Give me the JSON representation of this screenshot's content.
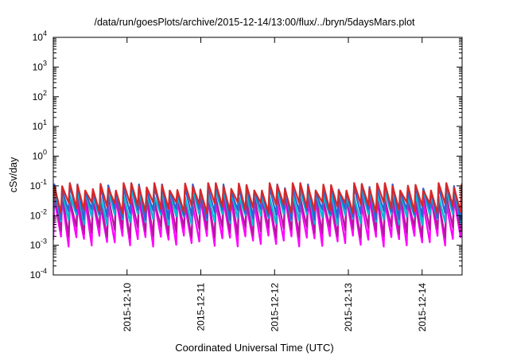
{
  "chart_data": {
    "type": "line",
    "title": "/data/run/goesPlots/archive/2015-12-14/13:00/flux/../bryn/5daysMars.plot",
    "xlabel": "Coordinated Universal Time (UTC)",
    "ylabel": "cSv/day",
    "y_scale": "log",
    "ylim": [
      0.0001,
      10000
    ],
    "y_ticks": [
      {
        "base": "10",
        "exp": "-4"
      },
      {
        "base": "10",
        "exp": "-3"
      },
      {
        "base": "10",
        "exp": "-2"
      },
      {
        "base": "10",
        "exp": "-1"
      },
      {
        "base": "10",
        "exp": "0"
      },
      {
        "base": "10",
        "exp": "1"
      },
      {
        "base": "10",
        "exp": "2"
      },
      {
        "base": "10",
        "exp": "3"
      },
      {
        "base": "10",
        "exp": "4"
      }
    ],
    "x_range": [
      "2015-12-09 00:00",
      "2015-12-14 13:00"
    ],
    "x_ticks": [
      "2015-12-10",
      "2015-12-11",
      "2015-12-12",
      "2015-12-13",
      "2015-12-14"
    ],
    "grid": false,
    "legend": "none",
    "pattern": {
      "period_hours": 2.5,
      "description": "sawtooth: sharp rise then decay each period"
    },
    "series": [
      {
        "color": "#ff00ff",
        "peak": 0.03,
        "trough": 0.0015
      },
      {
        "color": "#b5179e",
        "peak": 0.045,
        "trough": 0.003
      },
      {
        "color": "#00bcd4",
        "peak": 0.06,
        "trough": 0.008
      },
      {
        "color": "#2f63d6",
        "peak": 0.09,
        "trough": 0.012
      },
      {
        "color": "#d62728",
        "peak": 0.1,
        "trough": 0.02
      }
    ]
  }
}
